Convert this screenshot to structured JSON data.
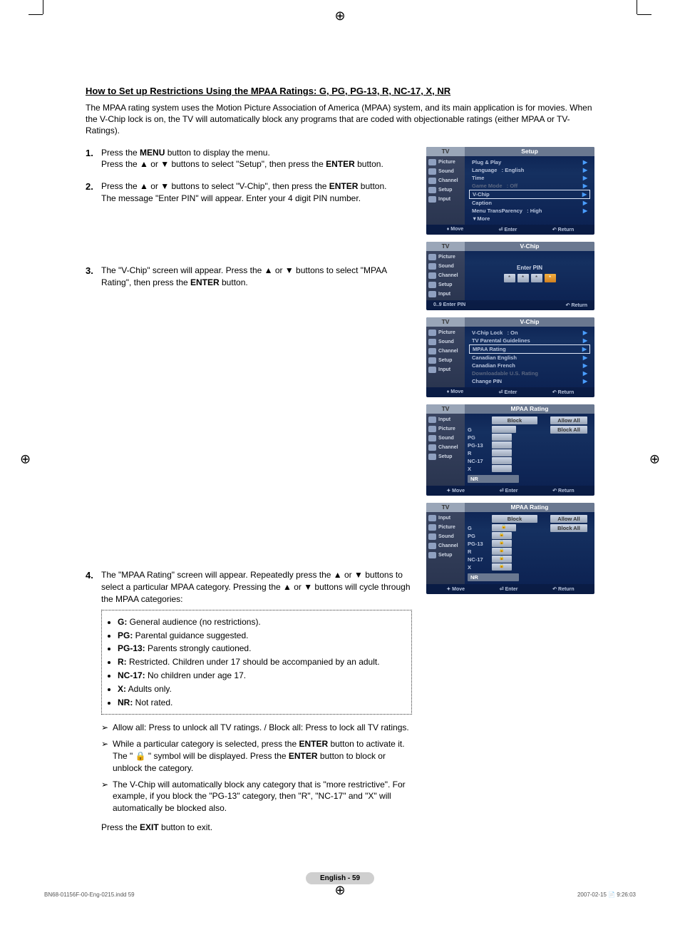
{
  "title": "How to Set up Restrictions Using the MPAA Ratings: G, PG, PG-13, R, NC-17, X, NR",
  "intro": "The MPAA rating system uses the Motion Picture Association of America (MPAA) system, and its main application is for movies. When the V-Chip lock is on, the TV will automatically block any programs that are coded with objectionable ratings (either MPAA or TV-Ratings).",
  "steps": {
    "s1_line1_pre": "Press the ",
    "s1_line1_b": "MENU",
    "s1_line1_post": " button to display the menu.",
    "s1_line2_pre": "Press the ▲ or ▼ buttons to select \"Setup\", then press the ",
    "s1_line2_b": "ENTER",
    "s1_line2_post": " button.",
    "s2_line1_pre": "Press the ▲ or ▼ buttons to select \"V-Chip\", then press the ",
    "s2_line1_b": "ENTER",
    "s2_line1_post": " button.",
    "s2_line2": "The message \"Enter PIN\" will appear. Enter your 4 digit PIN number.",
    "s3_line1": "The \"V-Chip\" screen will appear. Press the ▲ or ▼ buttons to select \"MPAA Rating\", then press the ",
    "s3_line1_b": "ENTER",
    "s3_line1_post": " button.",
    "s4_line1": "The \"MPAA Rating\" screen will appear. Repeatedly press the ▲ or ▼ buttons to select a particular MPAA category. Pressing the ▲ or ▼ buttons will cycle through the MPAA categories:"
  },
  "ratings": {
    "g_b": "G:",
    "g_t": " General audience (no restrictions).",
    "pg_b": "PG:",
    "pg_t": " Parental guidance suggested.",
    "pg13_b": "PG-13:",
    "pg13_t": " Parents strongly cautioned.",
    "r_b": "R:",
    "r_t": " Restricted. Children under 17 should be accompanied by an adult.",
    "nc17_b": "NC-17:",
    "nc17_t": " No children under age 17.",
    "x_b": "X:",
    "x_t": " Adults only.",
    "nr_b": "NR:",
    "nr_t": " Not rated."
  },
  "notes": {
    "n1": "Allow all: Press to unlock all TV ratings. / Block all: Press to lock all TV ratings.",
    "n2_pre": "While a particular category is selected, press the ",
    "n2_b1": "ENTER",
    "n2_mid": " button to activate it. The \" 🔒 \" symbol will be displayed. Press the ",
    "n2_b2": "ENTER",
    "n2_post": " button to block or unblock the category.",
    "n3": "The V-Chip will automatically block any category that is \"more restrictive\". For example, if you block the \"PG-13\" category, then \"R\", \"NC-17\" and \"X\" will automatically be blocked also."
  },
  "exit_pre": "Press the ",
  "exit_b": "EXIT",
  "exit_post": " button to exit.",
  "osd": {
    "tv": "TV",
    "left_menu": [
      "Picture",
      "Sound",
      "Channel",
      "Setup",
      "Input"
    ],
    "setup": {
      "title": "Setup",
      "rows": [
        {
          "l": "Plug & Play",
          "v": "",
          "dim": false
        },
        {
          "l": "Language",
          "v": ": English",
          "dim": false
        },
        {
          "l": "Time",
          "v": "",
          "dim": false
        },
        {
          "l": "Game Mode",
          "v": ": Off",
          "dim": true
        },
        {
          "l": "V-Chip",
          "v": "",
          "sel": true
        },
        {
          "l": "Caption",
          "v": "",
          "dim": false
        },
        {
          "l": "Menu TransParency",
          "v": ":  High",
          "dim": false
        },
        {
          "l": "▼More",
          "v": "",
          "noarr": true
        }
      ],
      "foot": [
        "Move",
        "Enter",
        "Return"
      ]
    },
    "vchip_pin": {
      "title": "V-Chip",
      "label": "Enter PIN",
      "foot_l": "0..9 Enter PIN",
      "foot_r": "Return"
    },
    "vchip_menu": {
      "title": "V-Chip",
      "rows": [
        {
          "l": "V-Chip Lock",
          "v": ": On"
        },
        {
          "l": "TV Parental Guidelines",
          "v": ""
        },
        {
          "l": "MPAA Rating",
          "v": "",
          "sel": true
        },
        {
          "l": "Canadian English",
          "v": ""
        },
        {
          "l": "Canadian French",
          "v": ""
        },
        {
          "l": "Downloadable U.S. Rating",
          "v": "",
          "dim": true
        },
        {
          "l": "Change PIN",
          "v": ""
        }
      ],
      "foot": [
        "Move",
        "Enter",
        "Return"
      ]
    },
    "mpaa1": {
      "title": "MPAA Rating",
      "left_menu": [
        "Input",
        "Picture",
        "Sound",
        "Channel",
        "Setup"
      ],
      "block_h": "Block",
      "allow_all": "Allow All",
      "block_all": "Block All",
      "labels": [
        "G",
        "PG",
        "PG-13",
        "R",
        "NC-17",
        "X"
      ],
      "nr": "NR",
      "foot": [
        "Move",
        "Enter",
        "Return"
      ],
      "locks": [
        false,
        false,
        false,
        false,
        false,
        false
      ]
    },
    "mpaa2": {
      "title": "MPAA Rating",
      "left_menu": [
        "Input",
        "Picture",
        "Sound",
        "Channel",
        "Setup"
      ],
      "block_h": "Block",
      "allow_all": "Allow All",
      "block_all": "Block All",
      "labels": [
        "G",
        "PG",
        "PG-13",
        "R",
        "NC-17",
        "X"
      ],
      "nr": "NR",
      "foot": [
        "Move",
        "Enter",
        "Return"
      ],
      "locks": [
        true,
        true,
        true,
        true,
        true,
        true
      ]
    }
  },
  "page_num": "English - 59",
  "footer_left": "BN68-01156F-00-Eng-0215.indd   59",
  "footer_right": "2007-02-15   📄 9:26:03"
}
